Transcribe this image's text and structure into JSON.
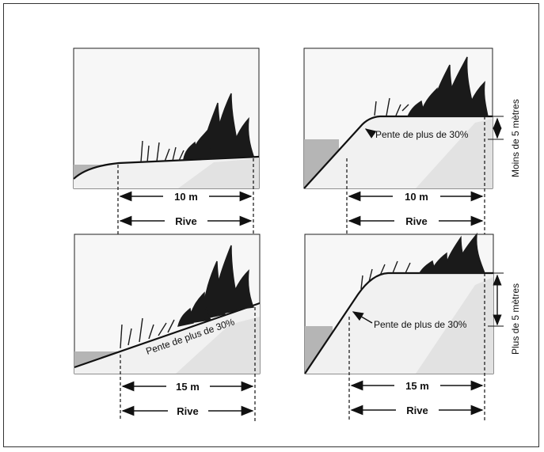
{
  "panels": [
    {
      "width_label": "10 m",
      "shore_label": "Rive"
    },
    {
      "width_label": "10 m",
      "shore_label": "Rive",
      "slope_label": "Pente de plus de 30%",
      "height_label": "Moins de 5 mètres"
    },
    {
      "width_label": "15 m",
      "shore_label": "Rive",
      "slope_label": "Pente de plus de 30%"
    },
    {
      "width_label": "15 m",
      "shore_label": "Rive",
      "slope_label": "Pente de plus de 30%",
      "height_label": "Plus de 5 mètres"
    }
  ],
  "colors": {
    "water": "#b5b5b5",
    "ground_light": "#f1f1f1",
    "ground_shade": "#e2e2e2",
    "sky": "#f7f7f7",
    "vegetation": "#1a1a1a",
    "line": "#111111"
  }
}
